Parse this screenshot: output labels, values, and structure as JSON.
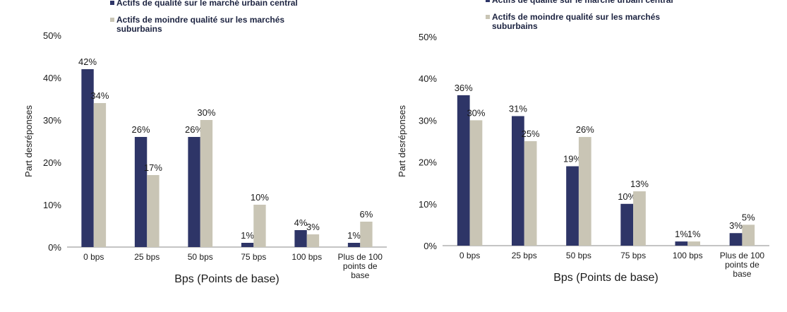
{
  "chart_data": [
    {
      "type": "bar",
      "title": "",
      "xlabel": "Bps (Points de base)",
      "ylabel": "Part desréponses",
      "ylim": [
        0,
        50
      ],
      "yticks": [
        "0%",
        "10%",
        "20%",
        "30%",
        "40%",
        "50%"
      ],
      "categories": [
        "0 bps",
        "25 bps",
        "50 bps",
        "75 bps",
        "100 bps",
        "Plus de 100 points de base"
      ],
      "series": [
        {
          "name": "Actifs de qualité sur le marché urbain central",
          "color": "#2e3567",
          "values": [
            42,
            26,
            26,
            1,
            4,
            1
          ],
          "labels": [
            "42%",
            "26%",
            "26%",
            "1%",
            "4%",
            "1%"
          ]
        },
        {
          "name": "Actifs de moindre qualité sur les marchés suburbains",
          "color": "#c9c5b5",
          "values": [
            34,
            17,
            30,
            10,
            3,
            6
          ],
          "labels": [
            "34%",
            "17%",
            "30%",
            "10%",
            "3%",
            "6%"
          ]
        }
      ],
      "legend_position": "top"
    },
    {
      "type": "bar",
      "title": "",
      "xlabel": "Bps (Points de base)",
      "ylabel": "Part desréponses",
      "ylim": [
        0,
        50
      ],
      "yticks": [
        "0%",
        "10%",
        "20%",
        "30%",
        "40%",
        "50%"
      ],
      "categories": [
        "0 bps",
        "25 bps",
        "50 bps",
        "75 bps",
        "100 bps",
        "Plus de 100 points de base"
      ],
      "series": [
        {
          "name": "Actifs de qualité sur le marché urbain central",
          "color": "#2e3567",
          "values": [
            36,
            31,
            19,
            10,
            1,
            3
          ],
          "labels": [
            "36%",
            "31%",
            "19%",
            "10%",
            "1%",
            "3%"
          ]
        },
        {
          "name": "Actifs de moindre qualité sur les marchés suburbains",
          "color": "#c9c5b5",
          "values": [
            30,
            25,
            26,
            13,
            1,
            5
          ],
          "labels": [
            "30%",
            "25%",
            "26%",
            "13%",
            "1%",
            "5%"
          ]
        }
      ],
      "legend_position": "top"
    }
  ]
}
